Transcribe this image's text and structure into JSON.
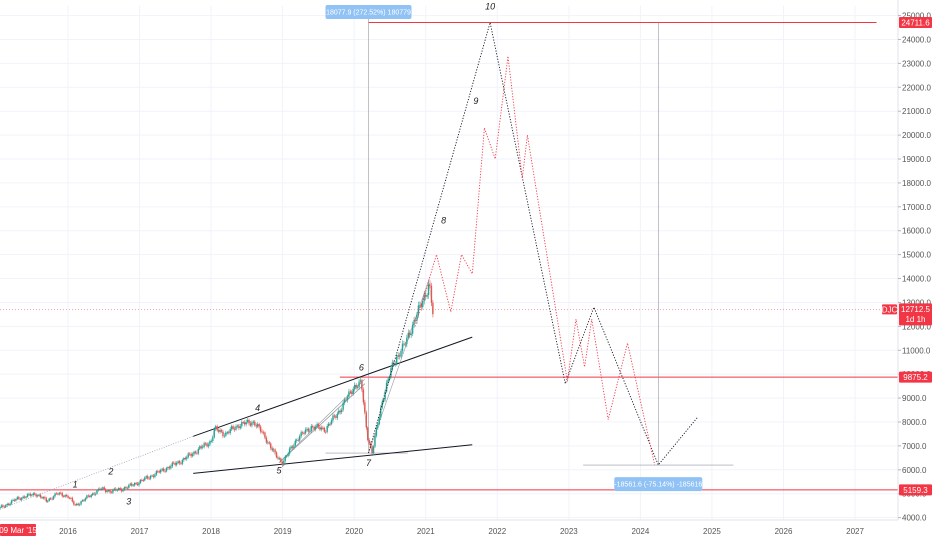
{
  "chart_data": {
    "type": "line",
    "xlim": [
      2015.05,
      2027.6
    ],
    "ylim": [
      3900,
      25400
    ],
    "x_ticks": [
      {
        "x": 2016,
        "label": "2016"
      },
      {
        "x": 2017,
        "label": "2017"
      },
      {
        "x": 2018,
        "label": "2018"
      },
      {
        "x": 2019,
        "label": "2019"
      },
      {
        "x": 2020,
        "label": "2020"
      },
      {
        "x": 2021,
        "label": "2021"
      },
      {
        "x": 2022,
        "label": "2022"
      },
      {
        "x": 2023,
        "label": "2023"
      },
      {
        "x": 2024,
        "label": "2024"
      },
      {
        "x": 2025,
        "label": "2025"
      },
      {
        "x": 2026,
        "label": "2026"
      },
      {
        "x": 2027,
        "label": "2027"
      }
    ],
    "y_ticks": [
      {
        "y": 4000,
        "label": "4000.0"
      },
      {
        "y": 5000,
        "label": "5000.0"
      },
      {
        "y": 6000,
        "label": "6000.0"
      },
      {
        "y": 7000,
        "label": "7000.0"
      },
      {
        "y": 8000,
        "label": "8000.0"
      },
      {
        "y": 9000,
        "label": "9000.0"
      },
      {
        "y": 10000,
        "label": "10000.0"
      },
      {
        "y": 11000,
        "label": "11000.0"
      },
      {
        "y": 12000,
        "label": "12000.0"
      },
      {
        "y": 13000,
        "label": "13000.0"
      },
      {
        "y": 14000,
        "label": "14000.0"
      },
      {
        "y": 15000,
        "label": "15000.0"
      },
      {
        "y": 16000,
        "label": "16000.0"
      },
      {
        "y": 17000,
        "label": "17000.0"
      },
      {
        "y": 18000,
        "label": "18000.0"
      },
      {
        "y": 19000,
        "label": "19000.0"
      },
      {
        "y": 20000,
        "label": "20000.0"
      },
      {
        "y": 21000,
        "label": "21000.0"
      },
      {
        "y": 22000,
        "label": "22000.0"
      },
      {
        "y": 23000,
        "label": "23000.0"
      },
      {
        "y": 24000,
        "label": "24000.0"
      },
      {
        "y": 25000,
        "label": "25000.0"
      }
    ],
    "price_series": {
      "x": [
        2015.05,
        2015.3,
        2015.55,
        2015.7,
        2015.85,
        2016.0,
        2016.1,
        2016.25,
        2016.45,
        2016.6,
        2016.75,
        2016.85,
        2017.0,
        2017.2,
        2017.4,
        2017.6,
        2017.8,
        2018.0,
        2018.05,
        2018.2,
        2018.4,
        2018.6,
        2018.75,
        2018.9,
        2019.0,
        2019.2,
        2019.4,
        2019.6,
        2019.8,
        2020.0,
        2020.1,
        2020.18,
        2020.25,
        2020.4,
        2020.55,
        2020.7,
        2020.85,
        2020.95,
        2021.05,
        2021.1
      ],
      "y": [
        4400,
        4800,
        5000,
        4700,
        5000,
        4900,
        4500,
        4800,
        5200,
        5100,
        5200,
        5300,
        5500,
        5800,
        6100,
        6400,
        6800,
        7200,
        7700,
        7500,
        7900,
        8000,
        7400,
        6600,
        6300,
        7300,
        7800,
        7700,
        8500,
        9500,
        9600,
        7500,
        6700,
        9000,
        10500,
        11200,
        12300,
        13000,
        13800,
        12500
      ]
    },
    "projection_black": {
      "x": [
        2020.2,
        2021.9,
        2022.95,
        2023.35,
        2024.25,
        2024.8
      ],
      "y": [
        6700,
        24711.6,
        9600,
        12800,
        6200,
        8200
      ]
    },
    "projection_red": {
      "x": [
        2020.85,
        2021.15,
        2021.35,
        2021.5,
        2021.65,
        2021.82,
        2021.97,
        2022.15,
        2022.35,
        2022.42,
        2022.98,
        2023.1,
        2023.22,
        2023.32,
        2023.42,
        2023.55,
        2023.82,
        2024.2
      ],
      "y": [
        12000,
        15000,
        12600,
        15000,
        14200,
        20300,
        19000,
        23300,
        18200,
        20000,
        9700,
        12300,
        10300,
        12300,
        10500,
        8100,
        11300,
        6200
      ]
    },
    "wave_labels": [
      {
        "x": 2016.1,
        "y": 5250,
        "label": "1"
      },
      {
        "x": 2016.6,
        "y": 5800,
        "label": "2"
      },
      {
        "x": 2016.85,
        "y": 4550,
        "label": "3"
      },
      {
        "x": 2018.65,
        "y": 8450,
        "label": "4"
      },
      {
        "x": 2018.95,
        "y": 5850,
        "label": "5"
      },
      {
        "x": 2020.1,
        "y": 10150,
        "label": "6"
      },
      {
        "x": 2020.2,
        "y": 6150,
        "label": "7"
      },
      {
        "x": 2021.25,
        "y": 16300,
        "label": "8"
      },
      {
        "x": 2021.7,
        "y": 21300,
        "label": "9"
      },
      {
        "x": 2021.9,
        "y": 25250,
        "label": "10"
      }
    ],
    "price_tags": [
      {
        "y": 24711.6,
        "label": "24711.6"
      },
      {
        "y": 12712.5,
        "label": "12712.5",
        "symbol": "DJC",
        "sublabel": "1d 1h"
      },
      {
        "y": 9875.2,
        "label": "9875.2"
      },
      {
        "y": 5159.3,
        "label": "5159.3"
      }
    ],
    "measurements": [
      {
        "x": 2020.2,
        "y": 25150,
        "label": "18077.9 (272.52%) 180779"
      },
      {
        "x": 2024.25,
        "y": 5400,
        "label": "-18561.6 (-75.14%) -185616"
      }
    ],
    "date_tag": {
      "x": 2015.05,
      "label": "09 Mar '15"
    },
    "grid": true,
    "colors": {
      "accent_red": "#f23645",
      "label_red": "#e53935",
      "measure_blue": "#90c2f5",
      "candle_up": "#26a69a",
      "candle_down": "#ef5350"
    }
  }
}
